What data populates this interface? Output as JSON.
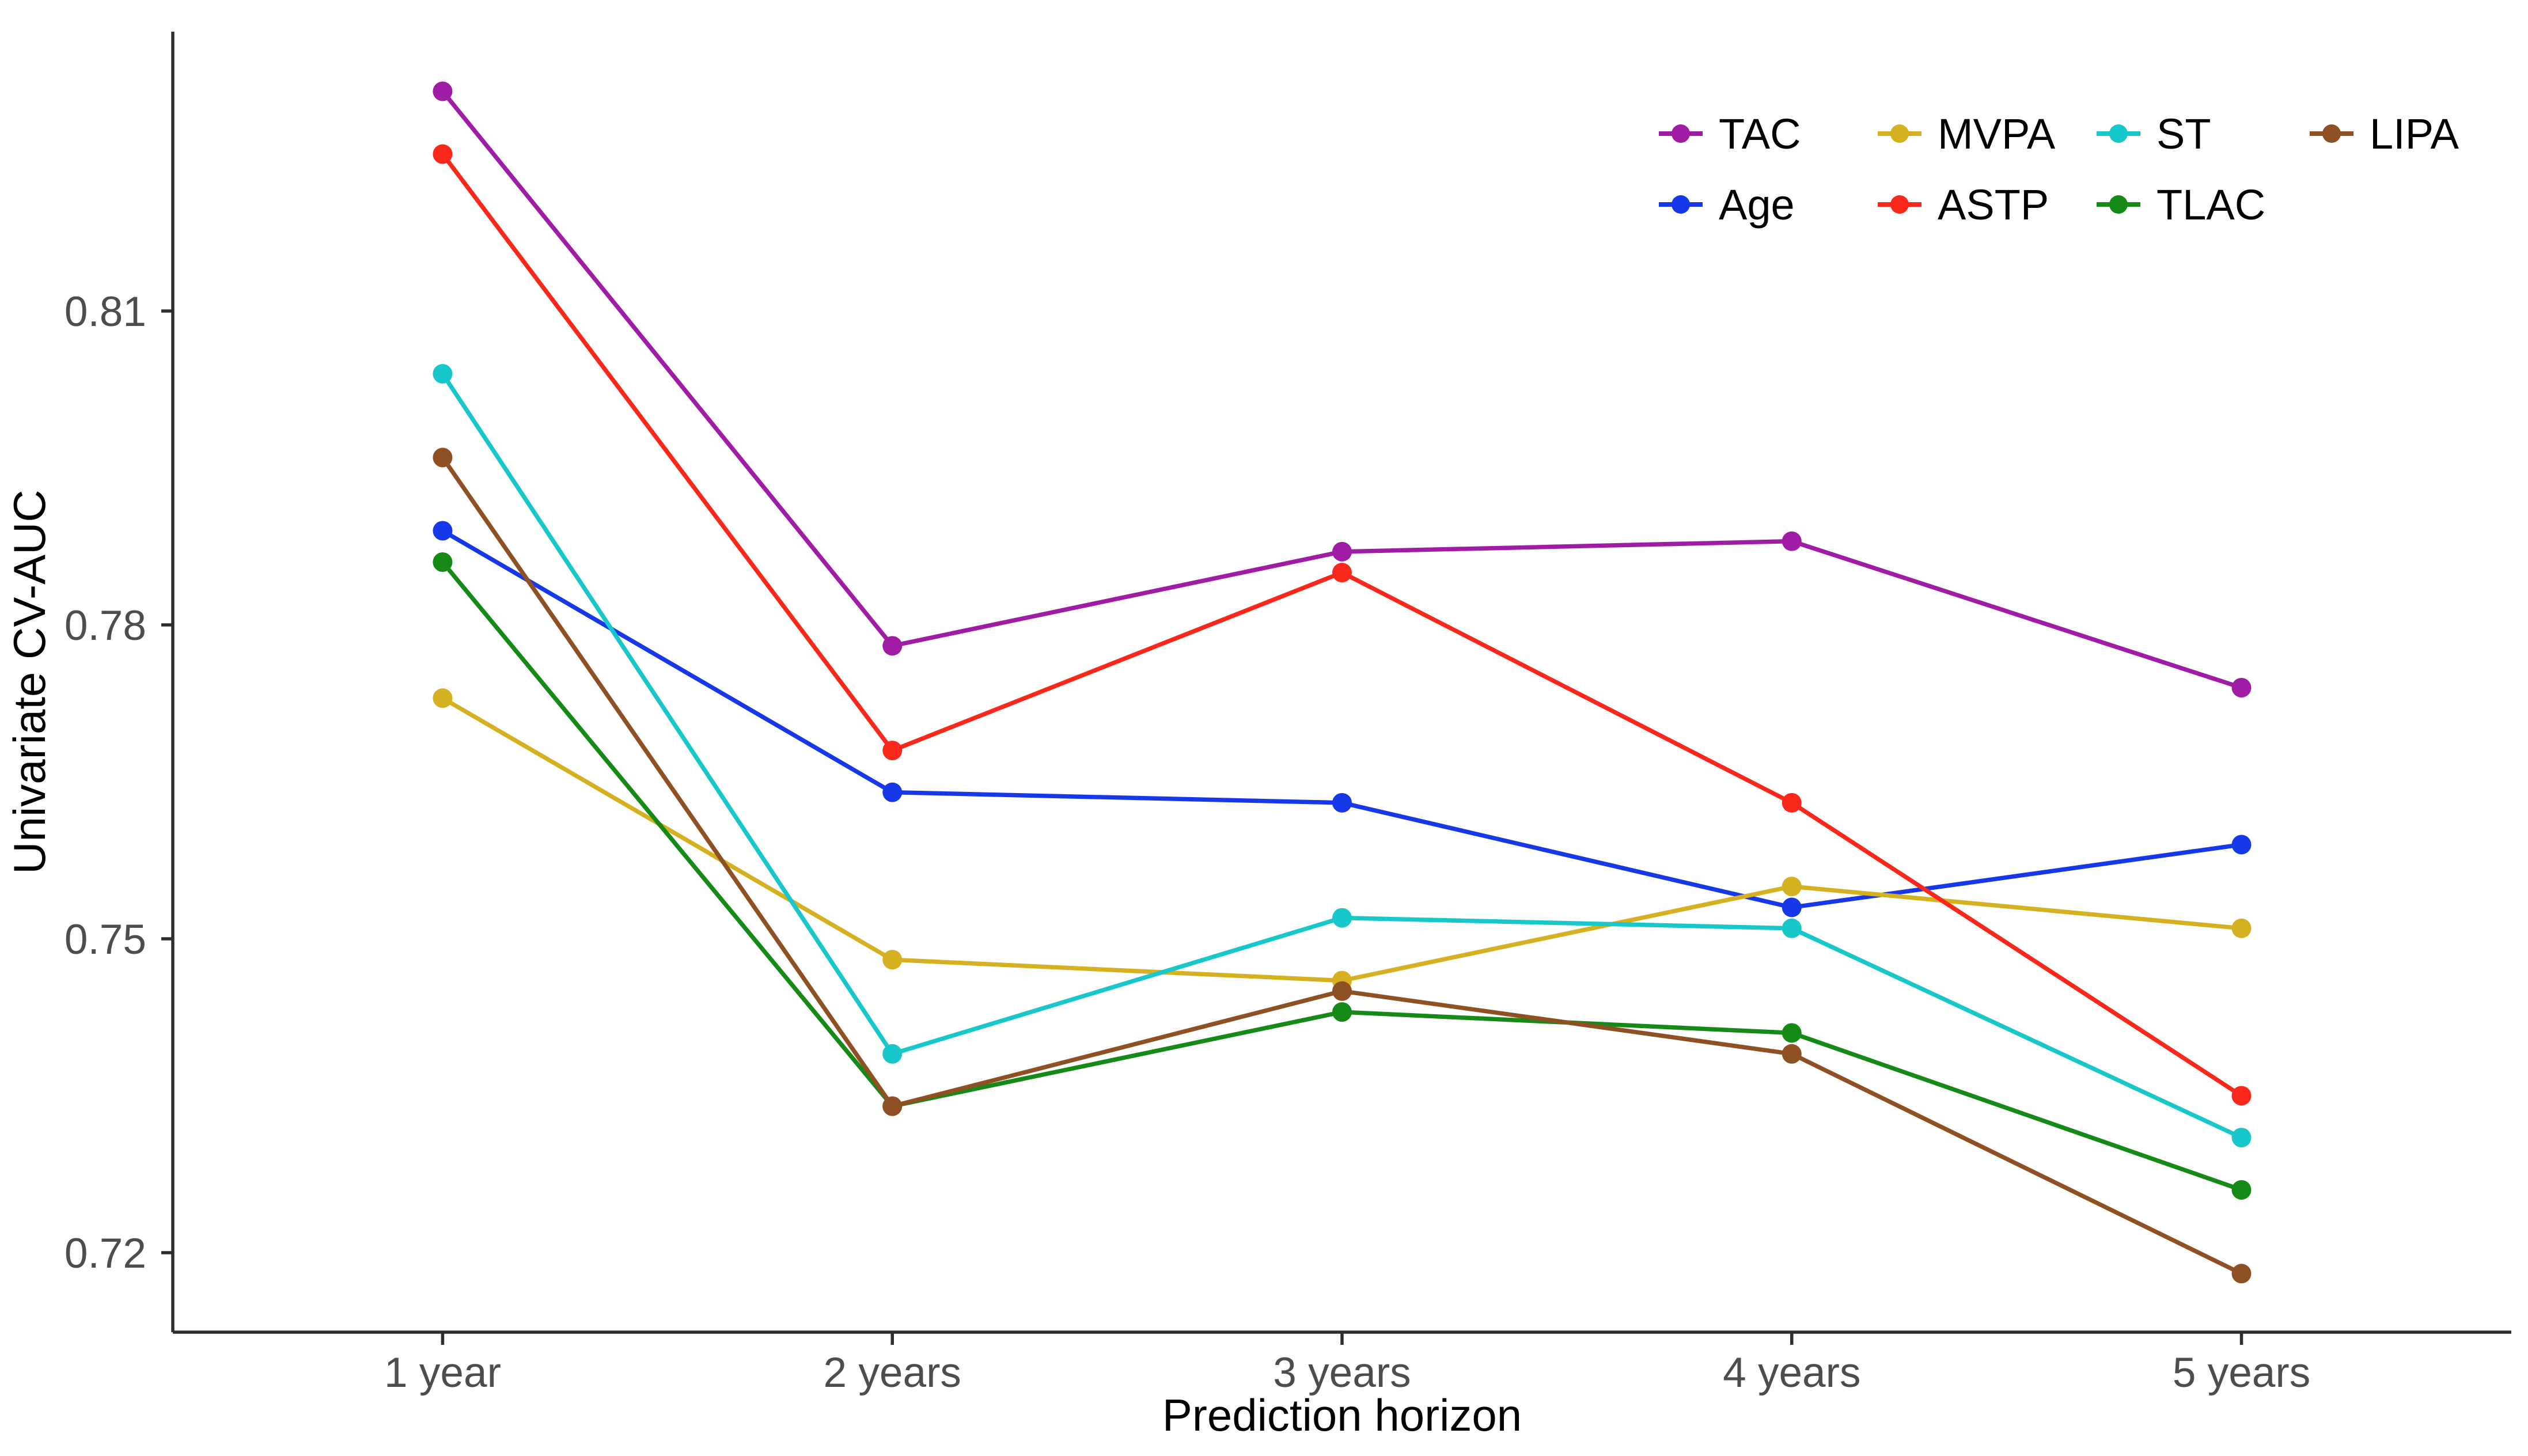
{
  "figure": {
    "background": "#ffffff"
  },
  "chart_data": {
    "type": "line",
    "title": "",
    "xlabel": "Prediction horizon",
    "ylabel": "Univariate CV-AUC",
    "categories": [
      "1 year",
      "2 years",
      "3 years",
      "4 years",
      "5 years"
    ],
    "yticks": [
      0.72,
      0.75,
      0.78,
      0.81
    ],
    "ylim": [
      0.7124,
      0.8367
    ],
    "grid": false,
    "legend_position": "top-right-inside",
    "legend_rows": [
      [
        "TAC",
        "MVPA",
        "ST",
        "LIPA"
      ],
      [
        "Age",
        "ASTP",
        "TLAC"
      ]
    ],
    "series": [
      {
        "name": "TAC",
        "color": "#A11CA5",
        "values": [
          0.831,
          0.778,
          0.787,
          0.788,
          0.774
        ]
      },
      {
        "name": "Age",
        "color": "#1638E8",
        "values": [
          0.789,
          0.764,
          0.763,
          0.753,
          0.759
        ]
      },
      {
        "name": "MVPA",
        "color": "#D5B021",
        "values": [
          0.773,
          0.748,
          0.746,
          0.755,
          0.751
        ]
      },
      {
        "name": "ASTP",
        "color": "#FA271B",
        "values": [
          0.825,
          0.768,
          0.785,
          0.763,
          0.735
        ]
      },
      {
        "name": "ST",
        "color": "#17C7CA",
        "values": [
          0.804,
          0.739,
          0.752,
          0.751,
          0.731
        ]
      },
      {
        "name": "TLAC",
        "color": "#168A16",
        "values": [
          0.786,
          0.734,
          0.743,
          0.741,
          0.726
        ]
      },
      {
        "name": "LIPA",
        "color": "#8F5023",
        "values": [
          0.796,
          0.734,
          0.745,
          0.739,
          0.718
        ]
      }
    ],
    "axis_color": "#2e2e2e",
    "tick_label_color": "#4d4d4d",
    "text_color": "#000000"
  }
}
